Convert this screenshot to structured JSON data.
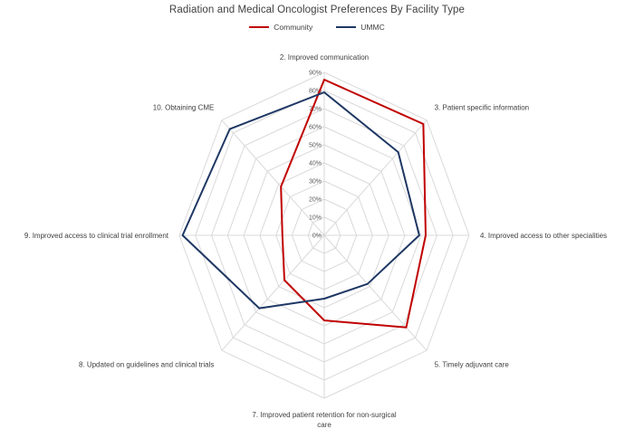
{
  "page": {
    "title": "Radiation and Medical Oncologist Preferences By Facility Type"
  },
  "legend": {
    "items": [
      {
        "label": "Community",
        "color": "#C00000"
      },
      {
        "label": "UMMC",
        "color": "#1F3864"
      }
    ]
  },
  "chart_data": {
    "type": "radar",
    "title": "Radiation and Medical Oncologist Preferences By Facility Type",
    "categories": [
      "2. Improved communication",
      "3. Patient specific information",
      "4. Improved access to other specialities",
      "5. Timely adjuvant care",
      "7. Improved patient retention for non-surgical care",
      "8. Updated on guidelines and clinical trials",
      "9. Improved access to clinical trial enrollment",
      "10. Obtaining CME"
    ],
    "series": [
      {
        "name": "Community",
        "color": "#C00000",
        "values": [
          86,
          87,
          63,
          72,
          47,
          35,
          26,
          38
        ]
      },
      {
        "name": "UMMC",
        "color": "#1F3864",
        "values": [
          79,
          65,
          59,
          38,
          35,
          57,
          88,
          83
        ]
      }
    ],
    "r_axis": {
      "min": 0,
      "max": 90,
      "step": 10,
      "tick_labels": [
        "0%",
        "10%",
        "20%",
        "30%",
        "40%",
        "50%",
        "60%",
        "70%",
        "80%",
        "90%"
      ]
    },
    "grid_color": "#D9D9D9",
    "tick_color": "#595959",
    "label_color": "#404040",
    "legend_position": "top"
  }
}
